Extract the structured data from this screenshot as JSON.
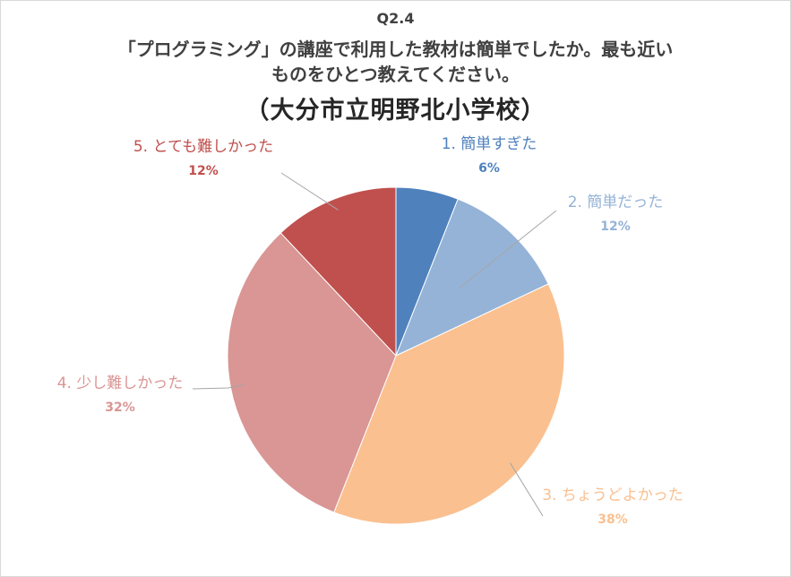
{
  "chart": {
    "code": "Q2.4",
    "question_line1": "「プログラミング」の講座で利用した教材は簡単でしたか。最も近い",
    "question_line2": "ものをひとつ教えてください。",
    "school": "（大分市立明野北小学校）"
  },
  "chart_data": {
    "type": "pie",
    "title": "Q2.4 「プログラミング」の講座で利用した教材は簡単でしたか。最も近いものをひとつ教えてください。（大分市立明野北小学校）",
    "categories": [
      "1. 簡単すぎた",
      "2. 簡単だった",
      "3. ちょうどよかった",
      "4. 少し難しかった",
      "5. とても難しかった"
    ],
    "values": [
      6,
      12,
      38,
      32,
      12
    ],
    "value_labels": [
      "6%",
      "12%",
      "38%",
      "32%",
      "12%"
    ],
    "unit": "%",
    "colors": [
      "#4f81bd",
      "#95b3d7",
      "#fac090",
      "#d99694",
      "#c0504d"
    ],
    "label_colors": [
      "#4f81bd",
      "#95b3d7",
      "#fac090",
      "#d99694",
      "#c0504d"
    ],
    "start": "12 o'clock",
    "direction": "clockwise",
    "legend": "none (data labels outside slices with leader lines)"
  }
}
